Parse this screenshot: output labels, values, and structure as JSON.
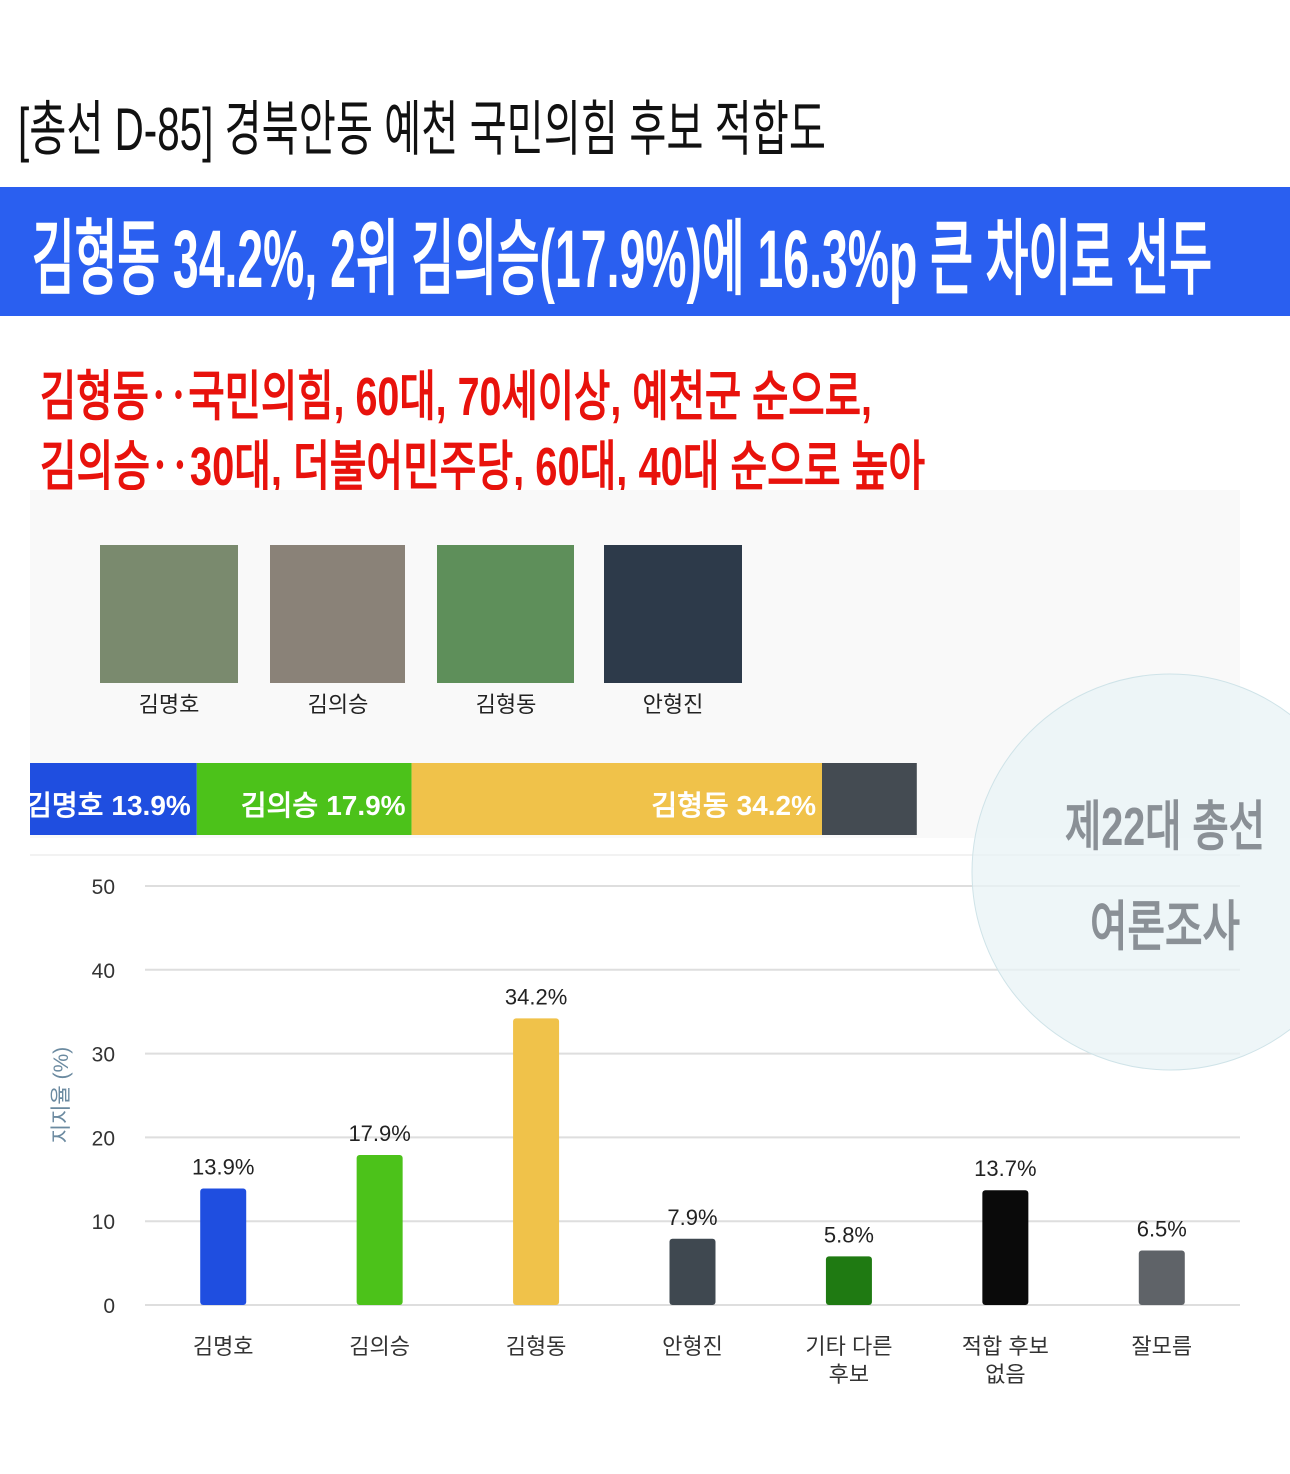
{
  "header": {
    "title": "[총선 D-85] 경북안동 예천 국민의힘 후보 적합도",
    "headline": "김형동 34.2%, 2위 김의승(17.9%)에 16.3%p 큰 차이로 선두",
    "subheads": [
      "김형동‥국민의힘, 60대, 70세이상, 예천군 순으로,",
      "김의승‥30대, 더불어민주당, 60대, 40대 순으로 높아"
    ]
  },
  "candidates": [
    "김명호",
    "김의승",
    "김형동",
    "안형진"
  ],
  "watermark": [
    "제22대 총선",
    "여론조사"
  ],
  "chart_data": [
    {
      "type": "stacked-bar",
      "orientation": "horizontal",
      "xlim": [
        0,
        100
      ],
      "series": [
        {
          "name": "김명호",
          "color": "#1f4ee0",
          "values": [
            13.9
          ],
          "value_labels": [
            "13.9%"
          ]
        },
        {
          "name": "김의승",
          "color": "#4cc21a",
          "values": [
            17.9
          ],
          "value_labels": [
            "17.9%"
          ]
        },
        {
          "name": "김형동",
          "color": "#f0c24a",
          "values": [
            34.2
          ],
          "value_labels": [
            "34.2%"
          ]
        },
        {
          "color": "#444b52",
          "values": [
            7.9
          ]
        }
      ]
    },
    {
      "type": "bar",
      "y_label": "지지율 (%)",
      "categories": [
        "김명호",
        "김의승",
        "김형동",
        "안형진",
        "기타 다른 후보",
        "적합 후보 없음",
        "잘모름"
      ],
      "values": [
        13.9,
        17.9,
        34.2,
        7.9,
        5.8,
        13.7,
        6.5
      ],
      "value_labels": [
        "13.9%",
        "17.9%",
        "34.2%",
        "7.9%",
        "5.8%",
        "13.7%",
        "6.5%"
      ],
      "colors": [
        "#1f4ee0",
        "#4cc21a",
        "#f0c24a",
        "#3f4850",
        "#1f7a12",
        "#0a0a0a",
        "#5f6368"
      ],
      "ylim": [
        0,
        50
      ],
      "yticks": [
        0,
        10,
        20,
        30,
        40,
        50
      ],
      "grid": true
    }
  ]
}
